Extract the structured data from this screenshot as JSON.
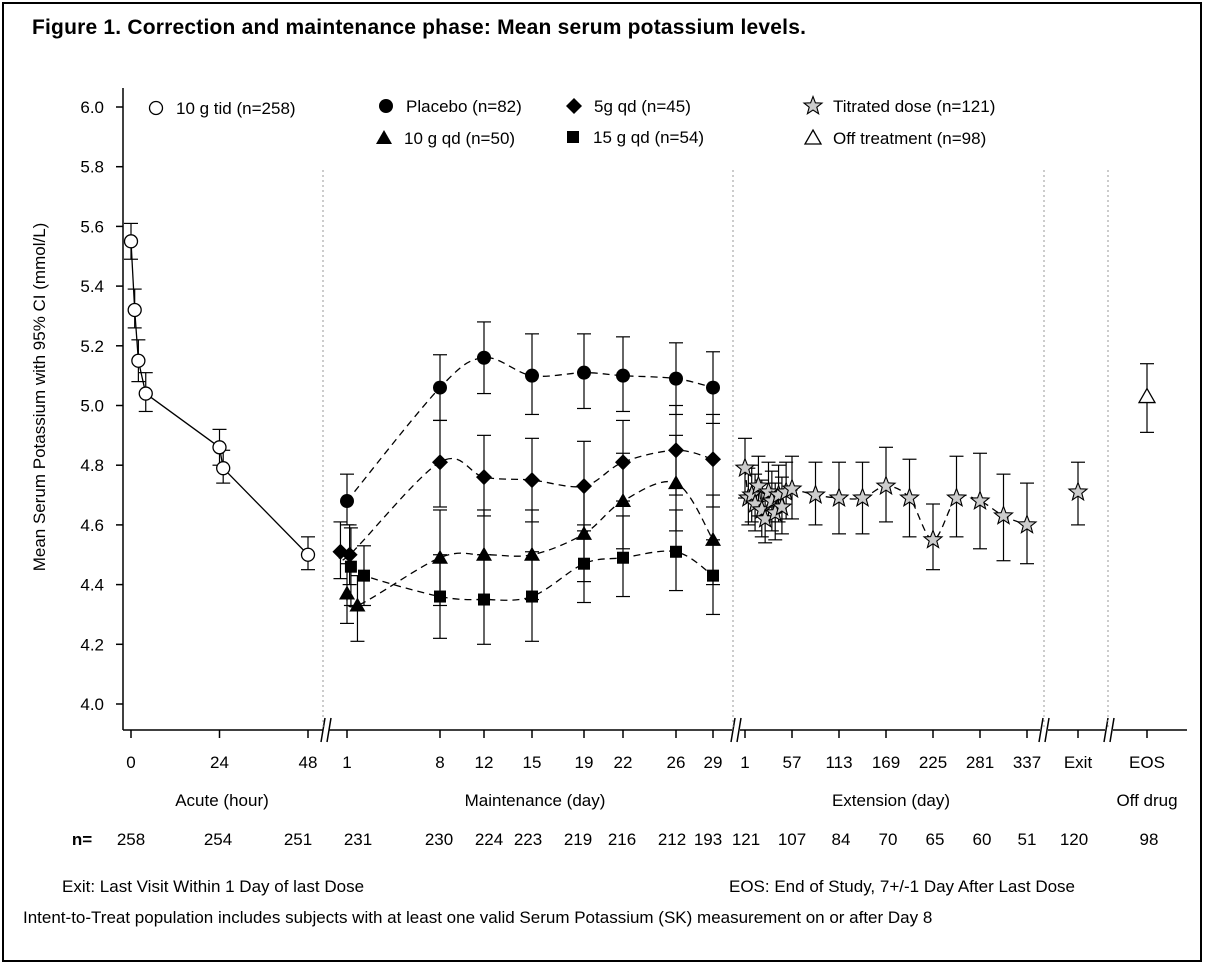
{
  "figure": {
    "title": "Figure 1. Correction and maintenance phase: Mean serum potassium levels.",
    "footnote_exit": "Exit: Last Visit Within 1 Day of last Dose",
    "footnote_eos": "EOS: End of Study, 7+/-1 Day After Last Dose",
    "footnote_itt": "Intent-to-Treat population includes subjects with at least one valid Serum Potassium (SK) measurement on or after Day 8"
  },
  "chart_data": {
    "type": "line",
    "ylabel": "Mean Serum Potassium with 95% CI (mmol/L)",
    "ylim": [
      4.0,
      6.0
    ],
    "yticks": [
      "4.0",
      "4.2",
      "4.4",
      "4.6",
      "4.8",
      "5.0",
      "5.2",
      "5.4",
      "5.6",
      "5.8",
      "6.0"
    ],
    "grid": false,
    "legend_position": "top",
    "n_label": "n=",
    "panels": [
      {
        "name": "Acute (hour)",
        "ticks": [
          {
            "label": "0",
            "x": 0
          },
          {
            "label": "24",
            "x": 24
          },
          {
            "label": "48",
            "x": 48
          }
        ]
      },
      {
        "name": "Maintenance (day)",
        "ticks": [
          {
            "label": "1",
            "x": 1
          },
          {
            "label": "8",
            "x": 8
          },
          {
            "label": "12",
            "x": 12
          },
          {
            "label": "15",
            "x": 15
          },
          {
            "label": "19",
            "x": 19
          },
          {
            "label": "22",
            "x": 22
          },
          {
            "label": "26",
            "x": 26
          },
          {
            "label": "29",
            "x": 29
          }
        ]
      },
      {
        "name": "Extension (day)",
        "ticks": [
          {
            "label": "1",
            "x": 1
          },
          {
            "label": "57",
            "x": 57
          },
          {
            "label": "113",
            "x": 113
          },
          {
            "label": "169",
            "x": 169
          },
          {
            "label": "225",
            "x": 225
          },
          {
            "label": "281",
            "x": 281
          },
          {
            "label": "337",
            "x": 337
          }
        ]
      },
      {
        "name": "Off drug",
        "ticks": [
          {
            "label": "Exit",
            "x": 0
          },
          {
            "label": "EOS",
            "x": 1
          }
        ]
      }
    ],
    "n_counts": [
      {
        "panel": 0,
        "x": 0,
        "label": "258"
      },
      {
        "panel": 0,
        "x": 24,
        "label": "254"
      },
      {
        "panel": 0,
        "x": 48,
        "label": "251"
      },
      {
        "panel": 1,
        "x": 1,
        "label": "231"
      },
      {
        "panel": 1,
        "x": 8,
        "label": "230"
      },
      {
        "panel": 1,
        "x": 12,
        "label": "224"
      },
      {
        "panel": 1,
        "x": 15,
        "label": "223"
      },
      {
        "panel": 1,
        "x": 19,
        "label": "219"
      },
      {
        "panel": 1,
        "x": 22,
        "label": "216"
      },
      {
        "panel": 1,
        "x": 26,
        "label": "212"
      },
      {
        "panel": 1,
        "x": 29,
        "label": "193"
      },
      {
        "panel": 2,
        "x": 1,
        "label": "121"
      },
      {
        "panel": 2,
        "x": 57,
        "label": "107"
      },
      {
        "panel": 2,
        "x": 113,
        "label": "84"
      },
      {
        "panel": 2,
        "x": 169,
        "label": "70"
      },
      {
        "panel": 2,
        "x": 225,
        "label": "65"
      },
      {
        "panel": 2,
        "x": 281,
        "label": "60"
      },
      {
        "panel": 2,
        "x": 337,
        "label": "51"
      },
      {
        "panel": 3,
        "x": 0,
        "label": "120"
      },
      {
        "panel": 3,
        "x": 1,
        "label": "98"
      }
    ],
    "series": [
      {
        "name": "10 g tid (n=258)",
        "marker": "circle-open",
        "line": "solid",
        "panel": 0,
        "points": [
          {
            "x": 0,
            "y": 5.55,
            "lo": 5.49,
            "hi": 5.61
          },
          {
            "x": 1,
            "y": 5.32,
            "lo": 5.26,
            "hi": 5.39
          },
          {
            "x": 2,
            "y": 5.15,
            "lo": 5.08,
            "hi": 5.22
          },
          {
            "x": 4,
            "y": 5.04,
            "lo": 4.98,
            "hi": 5.11
          },
          {
            "x": 24,
            "y": 4.86,
            "lo": 4.8,
            "hi": 4.92
          },
          {
            "x": 25,
            "y": 4.79,
            "lo": 4.74,
            "hi": 4.85
          },
          {
            "x": 48,
            "y": 4.5,
            "lo": 4.45,
            "hi": 4.56
          }
        ]
      },
      {
        "name": "Placebo (n=82)",
        "marker": "circle",
        "line": "dashed",
        "panel": 1,
        "points": [
          {
            "x": 1,
            "y": 4.68,
            "lo": 4.6,
            "hi": 4.77
          },
          {
            "x": 8,
            "y": 5.06,
            "lo": 4.95,
            "hi": 5.17
          },
          {
            "x": 12,
            "y": 5.16,
            "lo": 5.04,
            "hi": 5.28
          },
          {
            "x": 15,
            "y": 5.1,
            "lo": 4.97,
            "hi": 5.24
          },
          {
            "x": 19,
            "y": 5.11,
            "lo": 4.99,
            "hi": 5.24
          },
          {
            "x": 22,
            "y": 5.1,
            "lo": 4.98,
            "hi": 5.23
          },
          {
            "x": 26,
            "y": 5.09,
            "lo": 4.97,
            "hi": 5.21
          },
          {
            "x": 29,
            "y": 5.06,
            "lo": 4.94,
            "hi": 5.18
          }
        ]
      },
      {
        "name": "5g qd (n=45)",
        "marker": "diamond",
        "line": "dashed",
        "panel": 1,
        "points": [
          {
            "x": 0.5,
            "y": 4.51,
            "lo": 4.42,
            "hi": 4.61
          },
          {
            "x": 1.2,
            "y": 4.5,
            "lo": 4.4,
            "hi": 4.6
          },
          {
            "x": 8,
            "y": 4.81,
            "lo": 4.66,
            "hi": 4.95
          },
          {
            "x": 12,
            "y": 4.76,
            "lo": 4.63,
            "hi": 4.9
          },
          {
            "x": 15,
            "y": 4.75,
            "lo": 4.61,
            "hi": 4.89
          },
          {
            "x": 19,
            "y": 4.73,
            "lo": 4.58,
            "hi": 4.88
          },
          {
            "x": 22,
            "y": 4.81,
            "lo": 4.68,
            "hi": 4.95
          },
          {
            "x": 26,
            "y": 4.85,
            "lo": 4.7,
            "hi": 5.0
          },
          {
            "x": 29,
            "y": 4.82,
            "lo": 4.66,
            "hi": 4.97
          }
        ]
      },
      {
        "name": "10 g qd (n=50)",
        "marker": "triangle",
        "line": "dashed",
        "panel": 1,
        "points": [
          {
            "x": 1,
            "y": 4.37,
            "lo": 4.27,
            "hi": 4.47
          },
          {
            "x": 1.8,
            "y": 4.33,
            "lo": 4.21,
            "hi": 4.43
          },
          {
            "x": 8,
            "y": 4.49,
            "lo": 4.33,
            "hi": 4.65
          },
          {
            "x": 12,
            "y": 4.5,
            "lo": 4.35,
            "hi": 4.65
          },
          {
            "x": 15,
            "y": 4.5,
            "lo": 4.35,
            "hi": 4.65
          },
          {
            "x": 19,
            "y": 4.57,
            "lo": 4.41,
            "hi": 4.73
          },
          {
            "x": 22,
            "y": 4.68,
            "lo": 4.52,
            "hi": 4.84
          },
          {
            "x": 26,
            "y": 4.74,
            "lo": 4.58,
            "hi": 4.9
          },
          {
            "x": 29,
            "y": 4.55,
            "lo": 4.4,
            "hi": 4.7
          }
        ]
      },
      {
        "name": "15 g qd (n=54)",
        "marker": "square",
        "line": "dashed",
        "panel": 1,
        "points": [
          {
            "x": 1.3,
            "y": 4.46,
            "lo": 4.33,
            "hi": 4.59
          },
          {
            "x": 2.3,
            "y": 4.43,
            "lo": 4.33,
            "hi": 4.53
          },
          {
            "x": 8,
            "y": 4.36,
            "lo": 4.22,
            "hi": 4.5
          },
          {
            "x": 12,
            "y": 4.35,
            "lo": 4.2,
            "hi": 4.5
          },
          {
            "x": 15,
            "y": 4.36,
            "lo": 4.21,
            "hi": 4.51
          },
          {
            "x": 19,
            "y": 4.47,
            "lo": 4.34,
            "hi": 4.6
          },
          {
            "x": 22,
            "y": 4.49,
            "lo": 4.36,
            "hi": 4.63
          },
          {
            "x": 26,
            "y": 4.51,
            "lo": 4.38,
            "hi": 4.65
          },
          {
            "x": 29,
            "y": 4.43,
            "lo": 4.3,
            "hi": 4.55
          }
        ]
      },
      {
        "name": "Titrated dose (n=121)",
        "marker": "star",
        "line": "dashed",
        "panel": 2,
        "points": [
          {
            "x": 1,
            "y": 4.79,
            "lo": 4.69,
            "hi": 4.89
          },
          {
            "x": 5,
            "y": 4.69,
            "lo": 4.6,
            "hi": 4.79
          },
          {
            "x": 9,
            "y": 4.7,
            "lo": 4.61,
            "hi": 4.8
          },
          {
            "x": 13,
            "y": 4.67,
            "lo": 4.58,
            "hi": 4.77
          },
          {
            "x": 17,
            "y": 4.73,
            "lo": 4.63,
            "hi": 4.83
          },
          {
            "x": 21,
            "y": 4.65,
            "lo": 4.56,
            "hi": 4.75
          },
          {
            "x": 25,
            "y": 4.62,
            "lo": 4.54,
            "hi": 4.72
          },
          {
            "x": 29,
            "y": 4.71,
            "lo": 4.61,
            "hi": 4.81
          },
          {
            "x": 33,
            "y": 4.68,
            "lo": 4.58,
            "hi": 4.78
          },
          {
            "x": 37,
            "y": 4.64,
            "lo": 4.55,
            "hi": 4.74
          },
          {
            "x": 41,
            "y": 4.7,
            "lo": 4.61,
            "hi": 4.8
          },
          {
            "x": 45,
            "y": 4.66,
            "lo": 4.57,
            "hi": 4.76
          },
          {
            "x": 50,
            "y": 4.71,
            "lo": 4.62,
            "hi": 4.81
          },
          {
            "x": 57,
            "y": 4.72,
            "lo": 4.62,
            "hi": 4.83
          },
          {
            "x": 85,
            "y": 4.7,
            "lo": 4.6,
            "hi": 4.81
          },
          {
            "x": 113,
            "y": 4.69,
            "lo": 4.57,
            "hi": 4.81
          },
          {
            "x": 141,
            "y": 4.69,
            "lo": 4.57,
            "hi": 4.81
          },
          {
            "x": 169,
            "y": 4.73,
            "lo": 4.61,
            "hi": 4.86
          },
          {
            "x": 197,
            "y": 4.69,
            "lo": 4.56,
            "hi": 4.82
          },
          {
            "x": 225,
            "y": 4.55,
            "lo": 4.45,
            "hi": 4.67
          },
          {
            "x": 253,
            "y": 4.69,
            "lo": 4.56,
            "hi": 4.83
          },
          {
            "x": 281,
            "y": 4.68,
            "lo": 4.52,
            "hi": 4.84
          },
          {
            "x": 309,
            "y": 4.63,
            "lo": 4.48,
            "hi": 4.77
          },
          {
            "x": 337,
            "y": 4.6,
            "lo": 4.47,
            "hi": 4.74
          }
        ]
      },
      {
        "name": "Titrated dose Exit",
        "marker": "star",
        "line": "none",
        "panel": 3,
        "points": [
          {
            "x": 0,
            "y": 4.71,
            "lo": 4.6,
            "hi": 4.81
          }
        ]
      },
      {
        "name": "Off treatment (n=98)",
        "marker": "triangle-open",
        "line": "none",
        "panel": 3,
        "points": [
          {
            "x": 1,
            "y": 5.03,
            "lo": 4.91,
            "hi": 5.14
          }
        ]
      }
    ],
    "legend": [
      {
        "label": "10 g tid (n=258)",
        "marker": "circle-open"
      },
      {
        "label": "Placebo (n=82)",
        "marker": "circle"
      },
      {
        "label": "5g qd (n=45)",
        "marker": "diamond"
      },
      {
        "label": "10 g qd (n=50)",
        "marker": "triangle"
      },
      {
        "label": "15 g qd (n=54)",
        "marker": "square"
      },
      {
        "label": "Titrated dose (n=121)",
        "marker": "star"
      },
      {
        "label": "Off treatment (n=98)",
        "marker": "triangle-open"
      }
    ]
  }
}
